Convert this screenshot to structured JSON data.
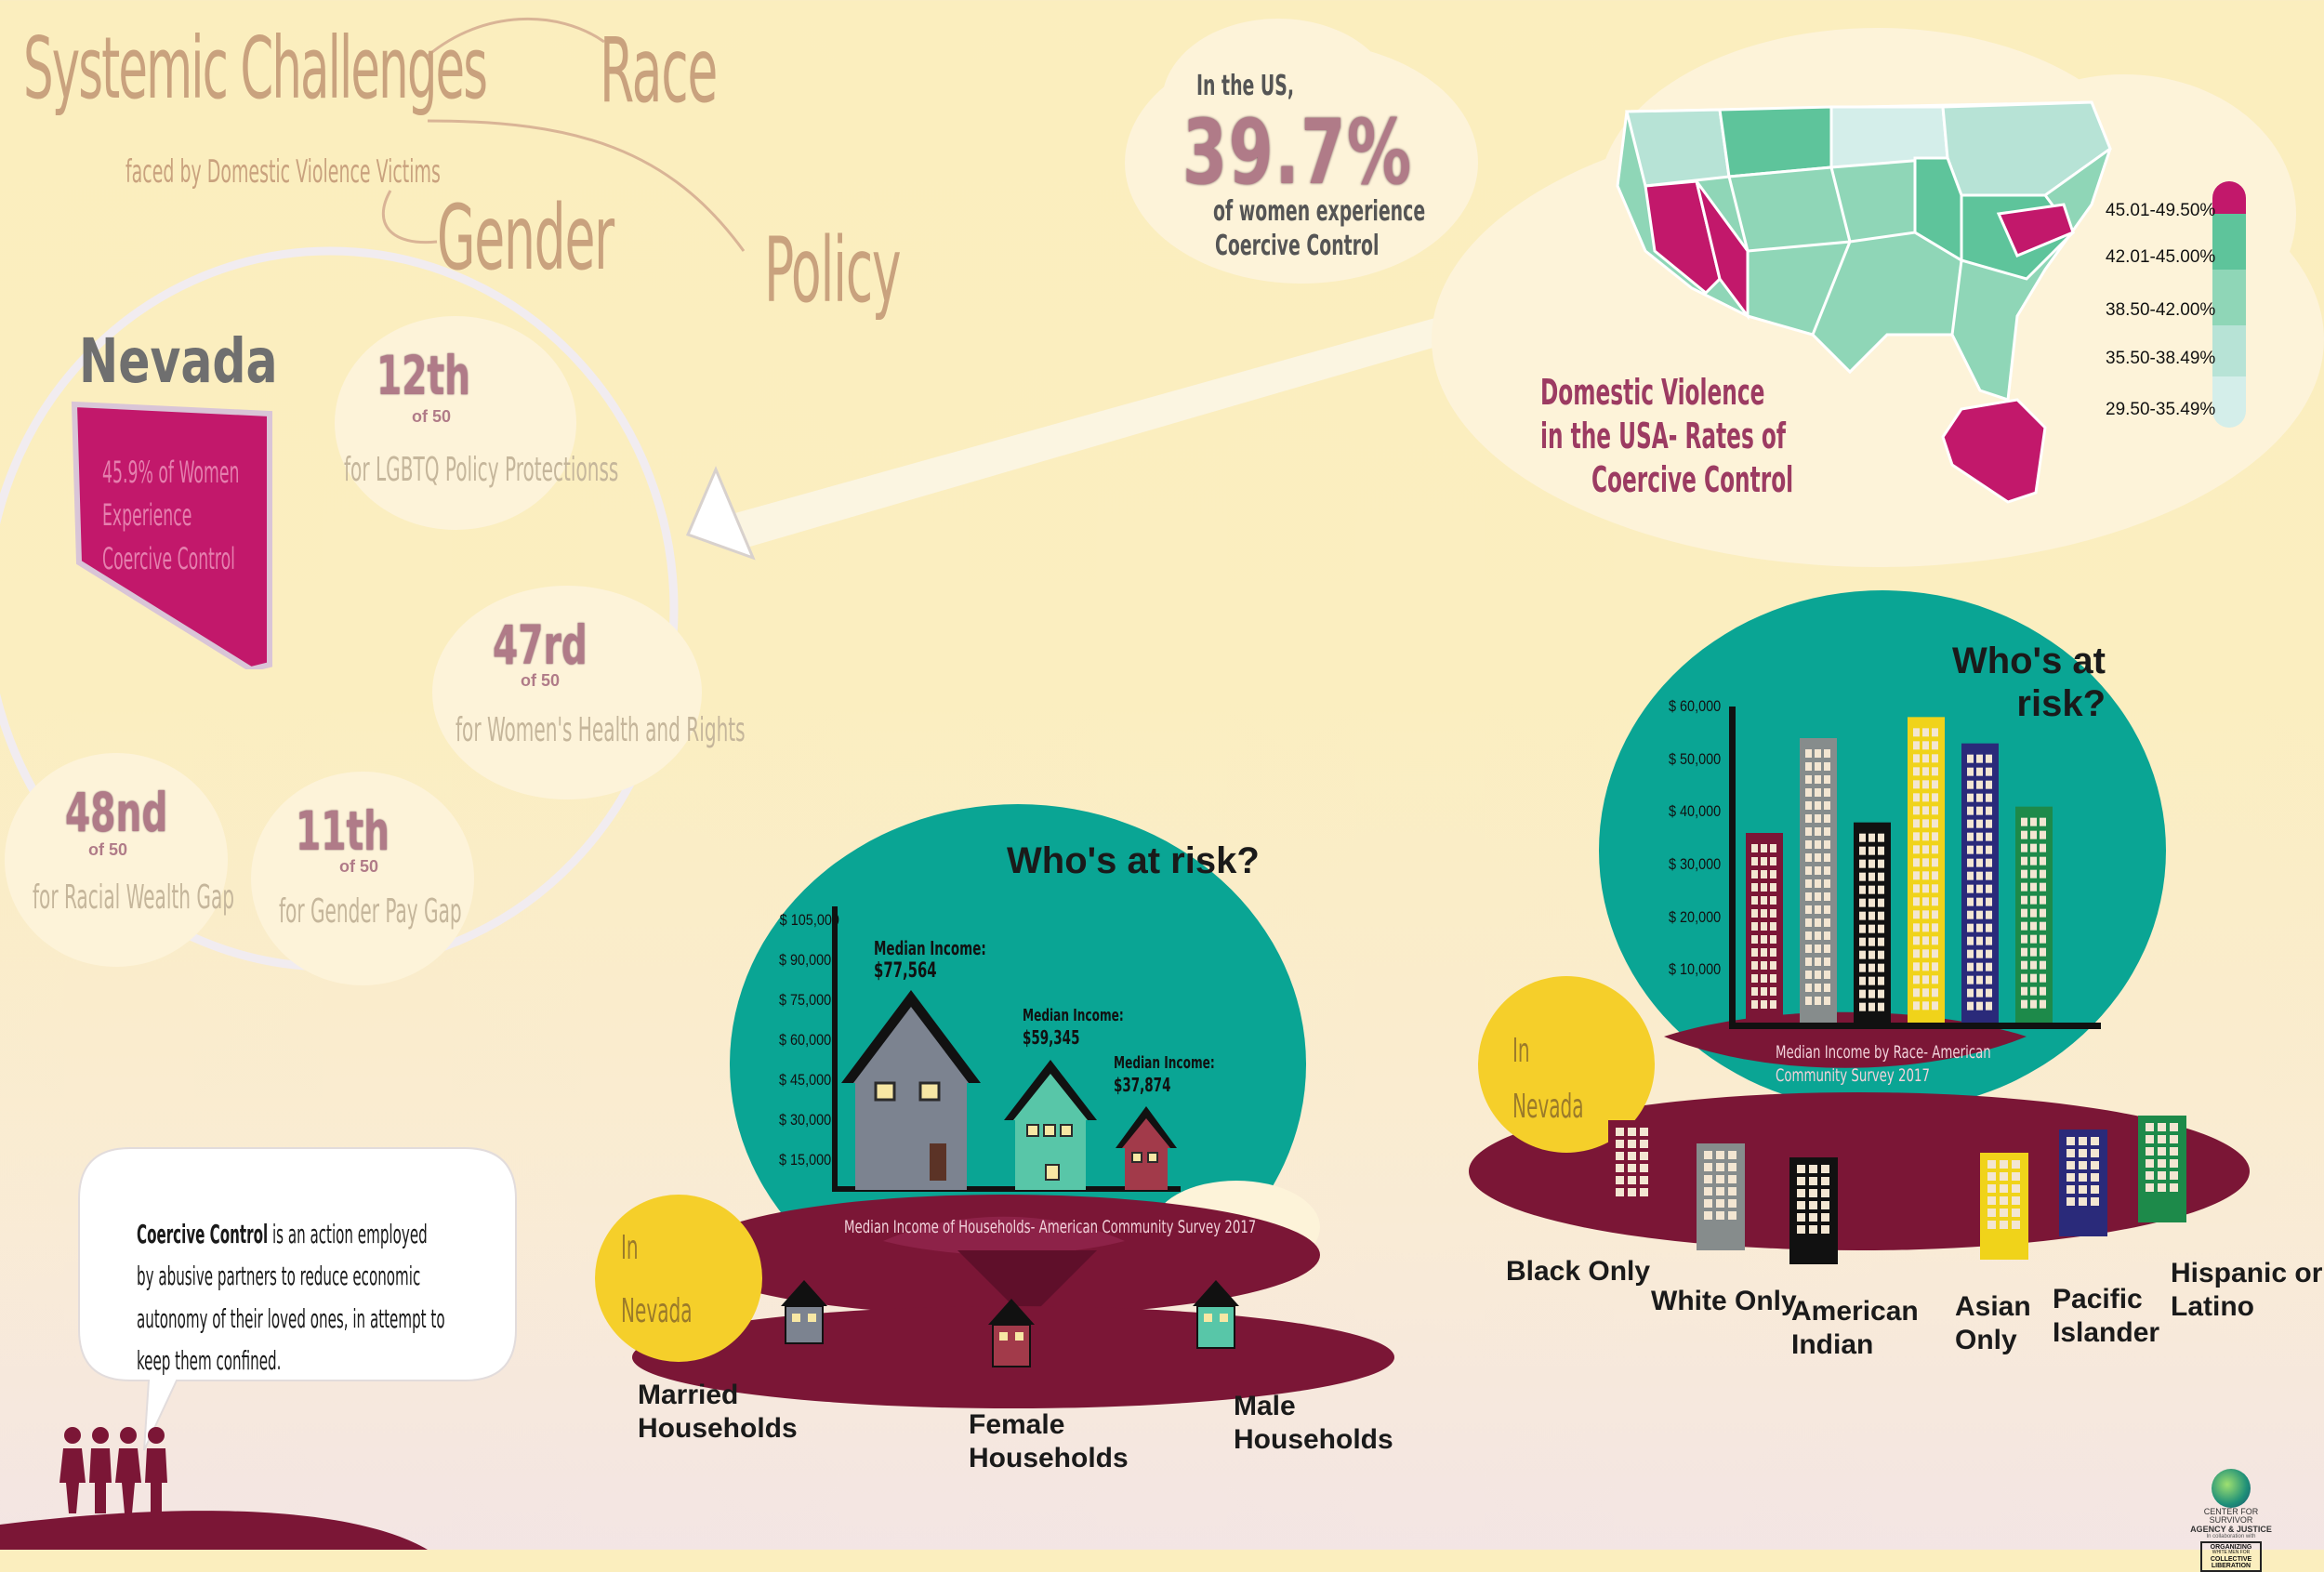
{
  "header": {
    "title": "Systemic Challenges",
    "subtitle": "faced by Domestic Violence Victims",
    "themes": [
      "Race",
      "Gender",
      "Policy"
    ]
  },
  "us_stat": {
    "prefix": "In the US,",
    "value": "39.7%",
    "line1": "of women experience",
    "line2": "Coercive Control"
  },
  "map": {
    "title_line1": "Domestic Violence",
    "title_line2": "in the USA- Rates of",
    "title_line3": "Coercive Control",
    "legend": [
      {
        "label": "45.01-49.50%",
        "color": "#c2186b"
      },
      {
        "label": "42.01-45.00%",
        "color": "#5ec49b"
      },
      {
        "label": "38.50-42.00%",
        "color": "#8fd6b7"
      },
      {
        "label": "35.50-38.49%",
        "color": "#b7e3d6"
      },
      {
        "label": "29.50-35.49%",
        "color": "#d4eeea"
      }
    ]
  },
  "nevada": {
    "name": "Nevada",
    "state_text": "45.9% of Women Experience Coercive Control",
    "rankings": [
      {
        "rank": "12th",
        "of": "of 50",
        "label": "for LGBTQ Policy Protectionss"
      },
      {
        "rank": "47rd",
        "of": "of 50",
        "label": "for Women's Health and Rights"
      },
      {
        "rank": "48nd",
        "of": "of 50",
        "label": "for Racial Wealth Gap"
      },
      {
        "rank": "11th",
        "of": "of 50",
        "label": "for Gender Pay Gap"
      }
    ]
  },
  "definition": {
    "term": "Coercive Control",
    "text": " is an action employed by abusive partners to  reduce economic autonomy of their loved ones, in attempt to keep them confined."
  },
  "households": {
    "heading": "Who's at risk?",
    "y_ticks": [
      "$ 105,000",
      "$ 90,000",
      "$ 75,000",
      "$ 60,000",
      "$ 45,000",
      "$ 30,000",
      "$ 15,000"
    ],
    "caption": "Median Income of Households- American Community Survey 2017",
    "location_line1": "In",
    "location_line2": "Nevada",
    "median_prefix": "Median Income:",
    "groups": [
      {
        "label_line1": "Married",
        "label_line2": "Households",
        "income": "$77,564"
      },
      {
        "label_line1": "Male",
        "label_line2": "Households",
        "income": "$59,345"
      },
      {
        "label_line1": "Female",
        "label_line2": "Households",
        "income": "$37,874"
      }
    ]
  },
  "race": {
    "heading": "Who's at risk?",
    "y_ticks": [
      "$ 60,000",
      "$ 50,000",
      "$ 40,000",
      "$ 30,000",
      "$ 20,000",
      "$ 10,000"
    ],
    "caption": "Median Income by Race- American Community Survey 2017",
    "location_line1": "In",
    "location_line2": "Nevada",
    "groups": [
      {
        "label_line1": "Black Only",
        "label_line2": "",
        "color": "#7b1636",
        "value": 36000
      },
      {
        "label_line1": "White Only",
        "label_line2": "",
        "color": "#868c8c",
        "value": 54000
      },
      {
        "label_line1": "American",
        "label_line2": "Indian",
        "color": "#111111",
        "value": 38000
      },
      {
        "label_line1": "Asian",
        "label_line2": "Only",
        "color": "#f0d31a",
        "value": 58000
      },
      {
        "label_line1": "Pacific",
        "label_line2": "Islander",
        "color": "#2a2a7a",
        "value": 53000
      },
      {
        "label_line1": "Hispanic or",
        "label_line2": "Latino",
        "color": "#1d8a4a",
        "value": 41000
      }
    ]
  },
  "logo": {
    "line1": "CENTER FOR SURVIVOR",
    "line2": "AGENCY & JUSTICE",
    "line3": "In collaboration with",
    "line4": "ORGANIZING",
    "line5": "WHITE MEN FOR",
    "line6": "COLLECTIVE",
    "line7": "LIBERATION"
  }
}
